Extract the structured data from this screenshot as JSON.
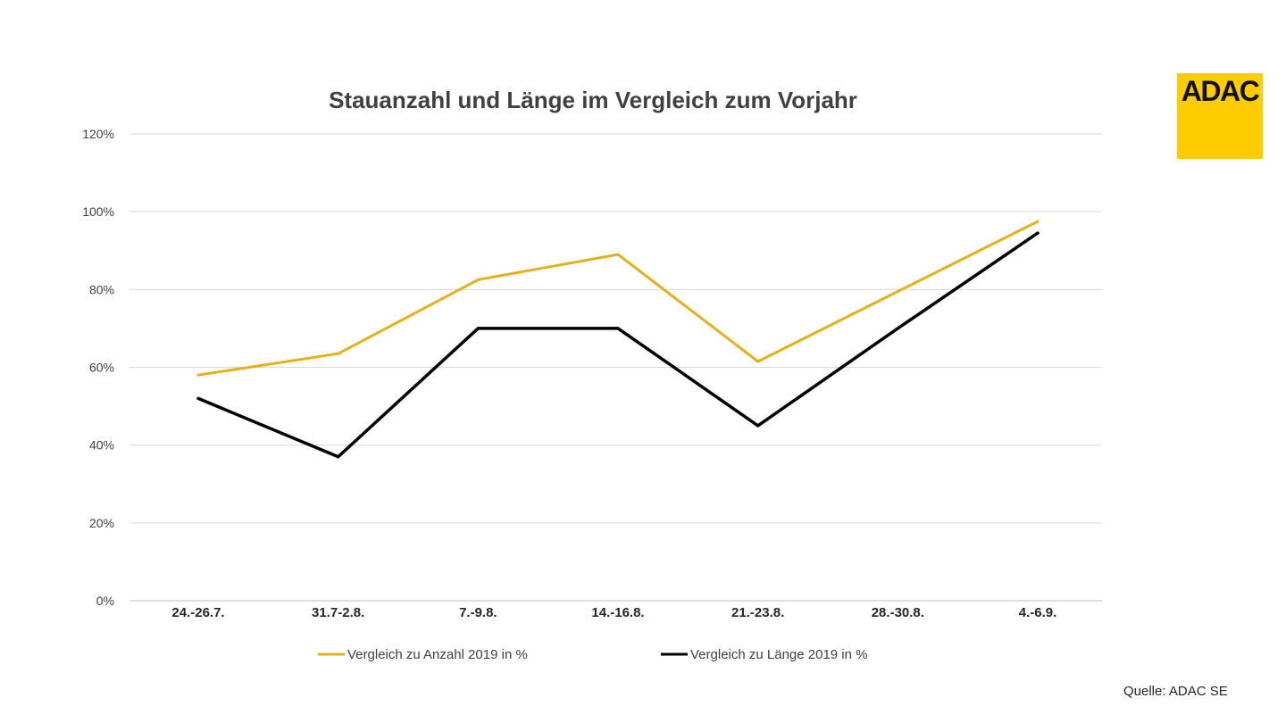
{
  "chart_data": {
    "type": "line",
    "title": "Stauanzahl und Länge im Vergleich zum Vorjahr",
    "categories": [
      "24.-26.7.",
      "31.7-2.8.",
      "7.-9.8.",
      "14.-16.8.",
      "21.-23.8.",
      "28.-30.8.",
      "4.-6.9."
    ],
    "y_ticks": [
      "0%",
      "20%",
      "40%",
      "60%",
      "80%",
      "100%",
      "120%"
    ],
    "ylim": [
      0,
      120
    ],
    "grid": true,
    "legend_position": "bottom",
    "series": [
      {
        "name": "Vergleich zu Anzahl 2019 in %",
        "color": "#e6b01b",
        "values": [
          58,
          63.5,
          82.5,
          89,
          61.5,
          79.5,
          97.5
        ]
      },
      {
        "name": "Vergleich zu Länge 2019 in %",
        "color": "#000000",
        "values": [
          52,
          37,
          70,
          70,
          45,
          70,
          94.5
        ]
      }
    ]
  },
  "logo": {
    "text": "ADAC",
    "color": "#ffcc00"
  },
  "source": "Quelle: ADAC SE"
}
